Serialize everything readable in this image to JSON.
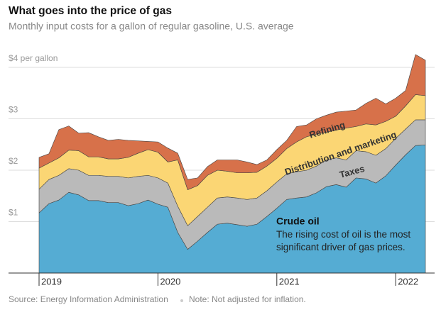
{
  "chart_data": {
    "type": "stacked_area",
    "title": "What goes into the price of gas",
    "subtitle": "Monthly input costs for a gallon of regular gasoline, U.S. average",
    "source": "Source: Energy Information Administration",
    "note": "Note: Not adjusted for inflation.",
    "annotation": "The rising cost of oil is the most significant driver of gas prices.",
    "categories": [
      "2019",
      null,
      null,
      null,
      null,
      null,
      null,
      null,
      null,
      null,
      null,
      null,
      "2020",
      null,
      null,
      null,
      null,
      null,
      null,
      null,
      null,
      null,
      null,
      null,
      "2021",
      null,
      null,
      null,
      null,
      null,
      null,
      null,
      null,
      null,
      null,
      null,
      "2022",
      null,
      null,
      null
    ],
    "series": [
      {
        "name": "Crude oil",
        "color": "#55acd3",
        "values": [
          1.17,
          1.35,
          1.42,
          1.57,
          1.52,
          1.41,
          1.41,
          1.37,
          1.37,
          1.31,
          1.35,
          1.42,
          1.34,
          1.28,
          0.79,
          0.46,
          0.62,
          0.79,
          0.95,
          0.97,
          0.94,
          0.91,
          0.95,
          1.1,
          1.26,
          1.43,
          1.46,
          1.48,
          1.56,
          1.68,
          1.72,
          1.67,
          1.85,
          1.83,
          1.75,
          1.89,
          2.1,
          2.3,
          2.48,
          2.49
        ]
      },
      {
        "name": "Taxes",
        "color": "#bababa",
        "values": [
          0.46,
          0.47,
          0.48,
          0.46,
          0.48,
          0.49,
          0.49,
          0.51,
          0.51,
          0.54,
          0.53,
          0.48,
          0.51,
          0.47,
          0.51,
          0.46,
          0.48,
          0.49,
          0.51,
          0.51,
          0.52,
          0.52,
          0.51,
          0.5,
          0.51,
          0.5,
          0.51,
          0.52,
          0.52,
          0.52,
          0.52,
          0.53,
          0.53,
          0.53,
          0.54,
          0.53,
          0.52,
          0.5,
          0.5,
          0.49
        ]
      },
      {
        "name": "Distribution and marketing",
        "color": "#fbd674",
        "values": [
          0.41,
          0.32,
          0.34,
          0.36,
          0.38,
          0.36,
          0.36,
          0.34,
          0.34,
          0.4,
          0.45,
          0.5,
          0.5,
          0.41,
          0.9,
          0.7,
          0.6,
          0.62,
          0.54,
          0.5,
          0.49,
          0.52,
          0.5,
          0.48,
          0.46,
          0.49,
          0.58,
          0.65,
          0.62,
          0.54,
          0.54,
          0.62,
          0.47,
          0.54,
          0.59,
          0.53,
          0.43,
          0.45,
          0.49,
          0.47
        ]
      },
      {
        "name": "Refining",
        "color": "#d7714a",
        "values": [
          0.21,
          0.18,
          0.55,
          0.47,
          0.34,
          0.47,
          0.39,
          0.36,
          0.38,
          0.33,
          0.24,
          0.16,
          0.2,
          0.27,
          0.13,
          0.2,
          0.15,
          0.17,
          0.2,
          0.22,
          0.25,
          0.21,
          0.15,
          0.12,
          0.17,
          0.16,
          0.3,
          0.23,
          0.3,
          0.33,
          0.35,
          0.33,
          0.32,
          0.4,
          0.52,
          0.34,
          0.35,
          0.3,
          0.78,
          0.69
        ]
      }
    ],
    "ylim": [
      0,
      4.3
    ],
    "yticks": [
      {
        "value": 1,
        "label": "$1"
      },
      {
        "value": 2,
        "label": "$2"
      },
      {
        "value": 3,
        "label": "$3"
      },
      {
        "value": 4,
        "label": "$4 per gallon"
      }
    ],
    "grid": true
  }
}
